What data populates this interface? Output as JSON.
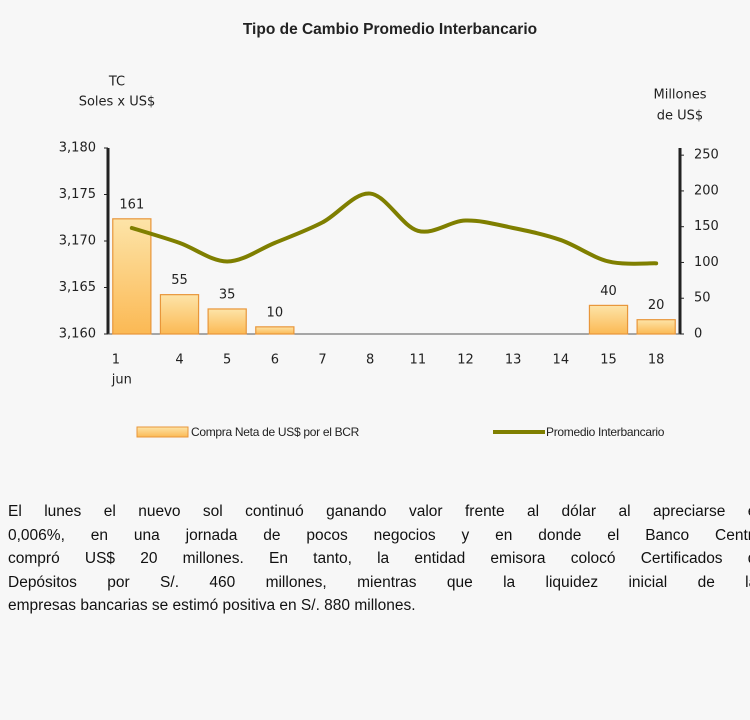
{
  "chart_data": {
    "type": "bar_line",
    "title": "Tipo de Cambio Promedio Interbancario",
    "y_label": [
      "TC",
      "Soles x US$"
    ],
    "y2_label": [
      "Millones",
      "de US$"
    ],
    "categories": [
      "1",
      "4",
      "5",
      "6",
      "7",
      "8",
      "11",
      "12",
      "13",
      "14",
      "15",
      "18"
    ],
    "month_label": "jun",
    "series": [
      {
        "name": "Compra Neta de US$ por el BCR",
        "type": "bar",
        "axis": "y2",
        "color": "#fcc96a",
        "values": [
          161,
          55,
          35,
          10,
          null,
          null,
          null,
          null,
          null,
          null,
          40,
          20
        ]
      },
      {
        "name": "Promedio Interbancario",
        "type": "line",
        "axis": "y",
        "color": "#7f7f00",
        "values": [
          3171.4,
          3169.8,
          3167.8,
          3169.8,
          3172.0,
          3175.1,
          3171.1,
          3172.2,
          3171.4,
          3170.1,
          3167.8,
          3167.6
        ]
      }
    ],
    "ylim": [
      3160,
      3180
    ],
    "yticks": [
      {
        "value": 3160,
        "label": "3,160"
      },
      {
        "value": 3165,
        "label": "3,165"
      },
      {
        "value": 3170,
        "label": "3,170"
      },
      {
        "value": 3175,
        "label": "3,175"
      },
      {
        "value": 3180,
        "label": "3,180"
      }
    ],
    "y2lim": [
      0,
      260
    ],
    "y2ticks": [
      0,
      50,
      100,
      150,
      200,
      250
    ],
    "legend": "bottom"
  },
  "text": {
    "lines": [
      "El lunes el nuevo sol continuó ganando valor frente al dólar al apreciarse en",
      "0,006%, en una jornada de pocos negocios y en donde el Banco Central",
      "compró US$ 20 millones. En tanto, la entidad emisora colocó Certificados de",
      "Depósitos por S/. 460 millones, mientras que la liquidez inicial de las",
      "empresas bancarias se estimó positiva en S/. 880 millones."
    ]
  }
}
